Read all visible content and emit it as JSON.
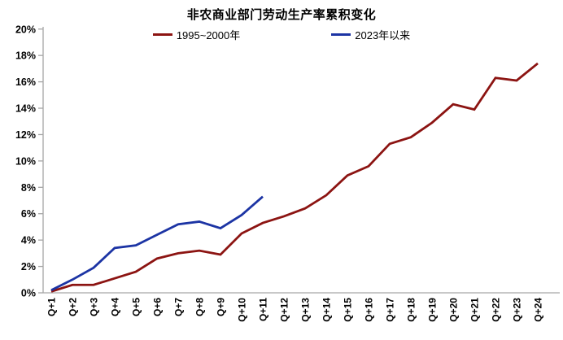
{
  "colors": {
    "series_1995_2000": "#8C1412",
    "series_2023": "#1C34A4",
    "axis_line": "#A6A6A6",
    "text": "#000000",
    "background": "#FFFFFF"
  },
  "chart_data": {
    "type": "line",
    "title": "非农商业部门劳动生产率累积变化",
    "categories": [
      "Q+1",
      "Q+2",
      "Q+3",
      "Q+4",
      "Q+5",
      "Q+6",
      "Q+7",
      "Q+8",
      "Q+9",
      "Q+10",
      "Q+11",
      "Q+12",
      "Q+13",
      "Q+14",
      "Q+15",
      "Q+16",
      "Q+17",
      "Q+18",
      "Q+19",
      "Q+20",
      "Q+21",
      "Q+22",
      "Q+23",
      "Q+24"
    ],
    "series": [
      {
        "name": "1995~2000年",
        "color": "#8C1412",
        "values": [
          0.1,
          0.6,
          0.6,
          1.1,
          1.6,
          2.6,
          3.0,
          3.2,
          2.9,
          4.5,
          5.3,
          5.8,
          6.4,
          7.4,
          8.9,
          9.6,
          11.3,
          11.8,
          12.9,
          14.3,
          13.9,
          16.3,
          16.1,
          17.4
        ]
      },
      {
        "name": "2023年以来",
        "color": "#1C34A4",
        "values": [
          0.2,
          1.0,
          1.9,
          3.4,
          3.6,
          4.4,
          5.2,
          5.4,
          4.9,
          5.9,
          7.3
        ]
      }
    ],
    "ylim": [
      0,
      20
    ],
    "y_tick_step": 2,
    "y_unit": "%",
    "y_tick_labels": [
      "0%",
      "2%",
      "4%",
      "6%",
      "8%",
      "10%",
      "12%",
      "14%",
      "16%",
      "18%",
      "20%"
    ],
    "grid": false,
    "legend_position": "top-center"
  }
}
